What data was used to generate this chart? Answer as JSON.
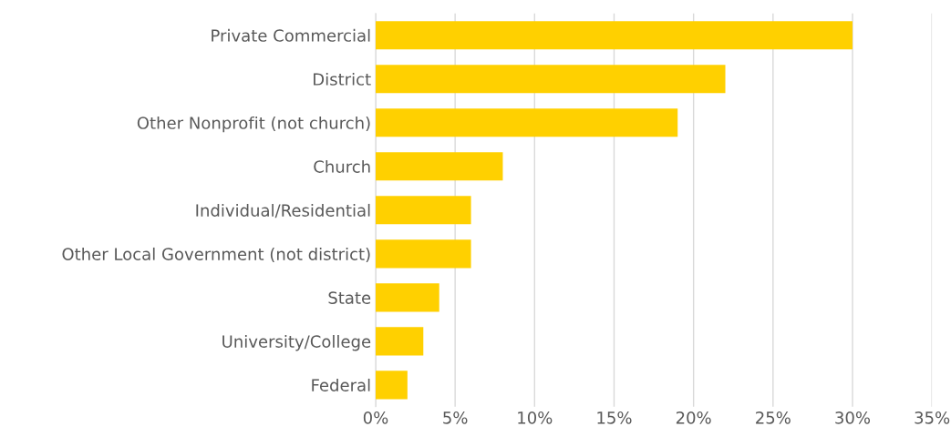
{
  "chart_data": {
    "type": "bar",
    "orientation": "horizontal",
    "categories": [
      "Private Commercial",
      "District",
      "Other Nonprofit (not church)",
      "Church",
      "Individual/Residential",
      "Other Local Government (not district)",
      "State",
      "University/College",
      "Federal"
    ],
    "values": [
      30,
      22,
      19,
      8,
      6,
      6,
      4,
      3,
      2
    ],
    "color": "#ffd000",
    "xlim": [
      0,
      35
    ],
    "xticks": [
      {
        "value": 0,
        "label": "0%"
      },
      {
        "value": 5,
        "label": "5%"
      },
      {
        "value": 10,
        "label": "10%"
      },
      {
        "value": 15,
        "label": "15%"
      },
      {
        "value": 20,
        "label": "20%"
      },
      {
        "value": 25,
        "label": "25%"
      },
      {
        "value": 30,
        "label": "30%"
      },
      {
        "value": 35,
        "label": "35%"
      }
    ],
    "grid": "x",
    "legend": false
  }
}
